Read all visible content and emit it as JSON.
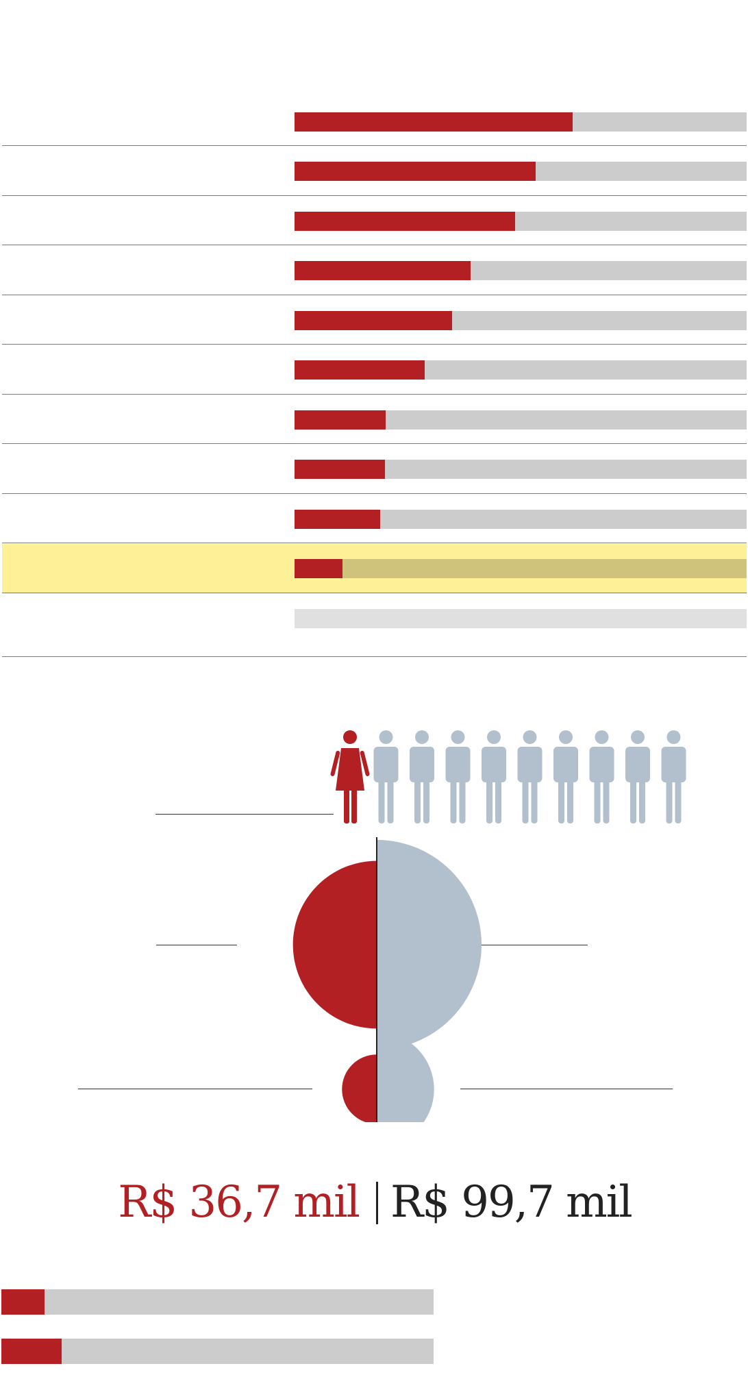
{
  "colors": {
    "female": "#b22024",
    "male": "#b2bfcc",
    "track": "#cccccc",
    "highlight": "#fdf096"
  },
  "ranking": {
    "rows": [
      {
        "label": "",
        "share": 0.615
      },
      {
        "label": "",
        "share": 0.533
      },
      {
        "label": "",
        "share": 0.488
      },
      {
        "label": "",
        "share": 0.39
      },
      {
        "label": "",
        "share": 0.348
      },
      {
        "label": "",
        "share": 0.288
      },
      {
        "label": "",
        "share": 0.202
      },
      {
        "label": "",
        "share": 0.2
      },
      {
        "label": "",
        "share": 0.19
      },
      {
        "label": "",
        "share": 0.106,
        "highlighted": true
      },
      {
        "label": "",
        "share": null
      }
    ]
  },
  "pictogram": {
    "female_count": 1,
    "male_count": 9,
    "female_icon": "woman-icon",
    "male_icon": "man-icon"
  },
  "half_circles": [
    {
      "female_value": 0.64,
      "male_value": 1.0
    },
    {
      "female_value": 0.11,
      "male_value": 0.3
    }
  ],
  "salary": {
    "female": "R$ 36,7 mil",
    "male": "R$ 99,7 mil"
  },
  "bottom_bars": [
    {
      "share": 0.1
    },
    {
      "share": 0.14
    }
  ]
}
